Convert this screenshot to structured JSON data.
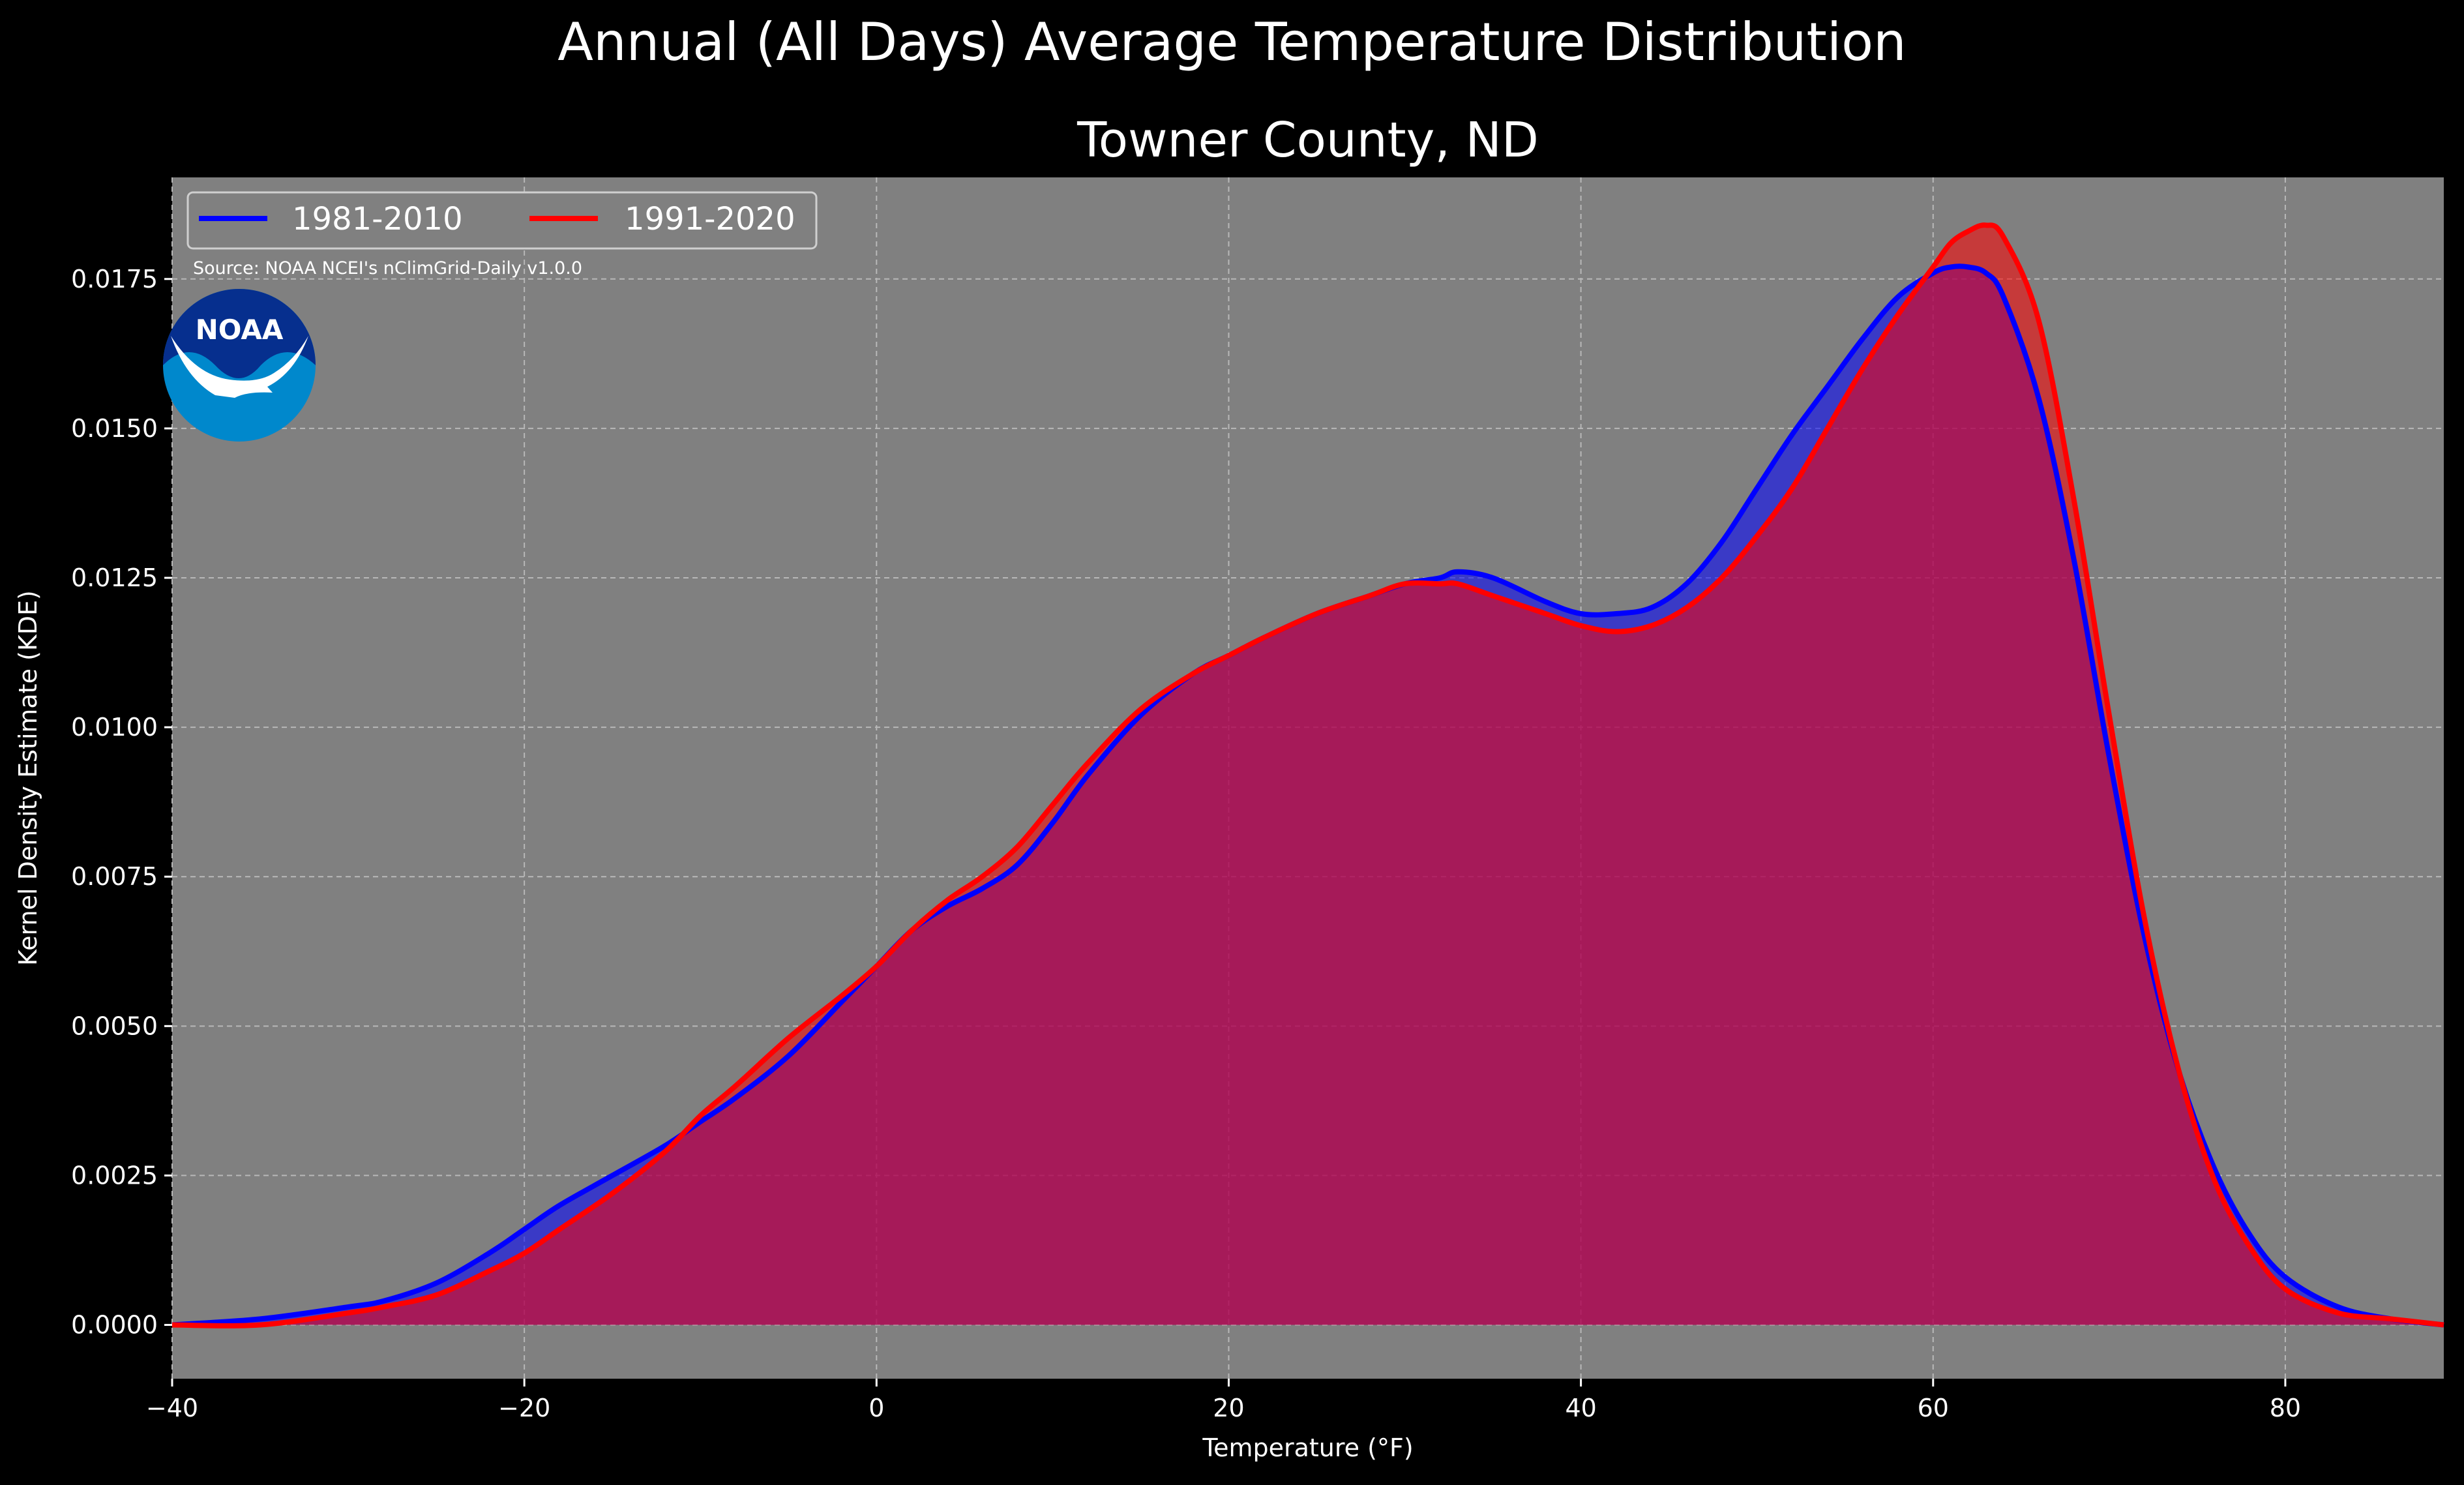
{
  "title": "Annual (All Days) Average Temperature Distribution",
  "subtitle": "Towner County, ND",
  "source": "Source: NOAA NCEI's nClimGrid-Daily v1.0.0",
  "logo_text": "NOAA",
  "colors": {
    "background": "#000000",
    "plot_bg": "#808080",
    "series_1981": "#0000ff",
    "series_1991": "#ff0000",
    "fill_overlap": "#9c1f5c",
    "logo_blue_light": "#0088cc",
    "logo_blue_dark": "#062f8e"
  },
  "chart_data": {
    "type": "area",
    "title": "Towner County, ND",
    "xlabel": "Temperature (°F)",
    "ylabel": "Kernel Density Estimate (KDE)",
    "xlim": [
      -40,
      89
    ],
    "ylim": [
      -0.0009,
      0.0192
    ],
    "xticks": [
      -40,
      -20,
      0,
      20,
      40,
      60,
      80
    ],
    "yticks": [
      0.0,
      0.0025,
      0.005,
      0.0075,
      0.01,
      0.0125,
      0.015,
      0.0175
    ],
    "xtick_labels": [
      "−40",
      "−20",
      "0",
      "20",
      "40",
      "60",
      "80"
    ],
    "ytick_labels": [
      "0.0000",
      "0.0025",
      "0.0050",
      "0.0075",
      "0.0100",
      "0.0125",
      "0.0150",
      "0.0175"
    ],
    "grid": true,
    "legend_position": "top-left",
    "series": [
      {
        "name": "1981-2010",
        "x": [
          -40,
          -35,
          -30,
          -28,
          -25,
          -22,
          -20,
          -18,
          -15,
          -12,
          -10,
          -8,
          -5,
          -2,
          0,
          2,
          4,
          6,
          8,
          10,
          12,
          15,
          18,
          20,
          22,
          25,
          28,
          30,
          32,
          33,
          35,
          38,
          40,
          42,
          44,
          46,
          48,
          50,
          52,
          54,
          56,
          58,
          60,
          61,
          62,
          63,
          64,
          66,
          68,
          70,
          72,
          74,
          76,
          78,
          80,
          83,
          86,
          89
        ],
        "y": [
          0.0,
          0.0001,
          0.0003,
          0.0004,
          0.0007,
          0.0012,
          0.0016,
          0.002,
          0.0025,
          0.003,
          0.0034,
          0.0038,
          0.0045,
          0.0054,
          0.006,
          0.0066,
          0.007,
          0.0073,
          0.0077,
          0.0084,
          0.0092,
          0.0102,
          0.0109,
          0.0112,
          0.0115,
          0.0119,
          0.0122,
          0.0124,
          0.0125,
          0.0126,
          0.0125,
          0.0121,
          0.0119,
          0.0119,
          0.012,
          0.0124,
          0.0131,
          0.014,
          0.0149,
          0.0157,
          0.0165,
          0.0172,
          0.0176,
          0.0177,
          0.0177,
          0.0176,
          0.0172,
          0.0155,
          0.0128,
          0.0095,
          0.0065,
          0.0042,
          0.0026,
          0.0015,
          0.0008,
          0.0003,
          0.0001,
          0.0
        ]
      },
      {
        "name": "1991-2020",
        "x": [
          -40,
          -35,
          -30,
          -28,
          -25,
          -22,
          -20,
          -18,
          -15,
          -12,
          -10,
          -8,
          -5,
          -2,
          0,
          2,
          4,
          6,
          8,
          10,
          12,
          15,
          18,
          20,
          22,
          25,
          28,
          30,
          32,
          33,
          35,
          38,
          40,
          42,
          44,
          46,
          48,
          50,
          52,
          54,
          56,
          58,
          60,
          61,
          62,
          63,
          64,
          66,
          68,
          70,
          72,
          74,
          76,
          78,
          80,
          83,
          86,
          89
        ],
        "y": [
          0.0,
          0.0,
          0.0002,
          0.0003,
          0.0005,
          0.0009,
          0.0012,
          0.0016,
          0.0022,
          0.0029,
          0.0035,
          0.004,
          0.0048,
          0.0055,
          0.006,
          0.0066,
          0.0071,
          0.0075,
          0.008,
          0.0087,
          0.0094,
          0.0103,
          0.0109,
          0.0112,
          0.0115,
          0.0119,
          0.0122,
          0.0124,
          0.0124,
          0.0124,
          0.0122,
          0.0119,
          0.0117,
          0.0116,
          0.0117,
          0.012,
          0.0125,
          0.0132,
          0.014,
          0.015,
          0.016,
          0.0169,
          0.0177,
          0.0181,
          0.0183,
          0.0184,
          0.0182,
          0.0168,
          0.0138,
          0.0102,
          0.0068,
          0.0042,
          0.0024,
          0.0013,
          0.0006,
          0.0002,
          0.0001,
          0.0
        ]
      }
    ]
  }
}
